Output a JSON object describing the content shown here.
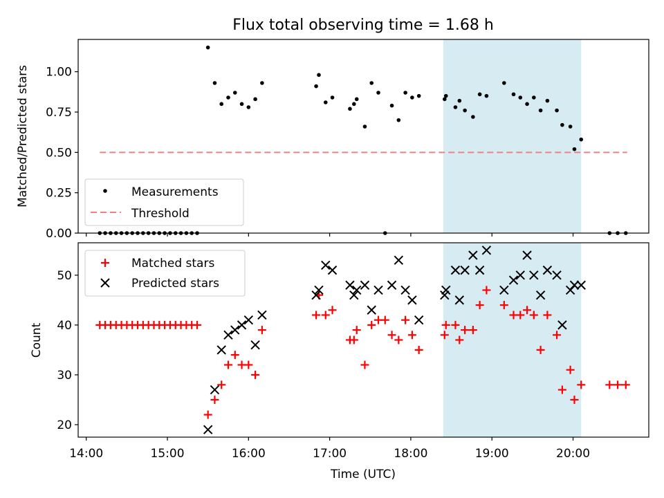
{
  "title": "Flux total observing time = 1.68 h",
  "colors": {
    "measurement": "#000000",
    "threshold": "#f08080",
    "matched": "#ff0000",
    "predicted": "#000000",
    "highlight": "#add8e6"
  },
  "chart_data": [
    {
      "type": "scatter",
      "ylabel": "Matched/Predicted stars",
      "xlim": [
        "13:54",
        "20:56"
      ],
      "ylim": [
        0,
        1.2
      ],
      "yticks": [
        "0.00",
        "0.25",
        "0.50",
        "0.75",
        "1.00"
      ],
      "highlight_span": [
        "18:24",
        "20:06"
      ],
      "legend": {
        "position": "lower-left",
        "entries": [
          "Measurements",
          "Threshold"
        ]
      },
      "threshold": {
        "name": "Threshold",
        "x": [
          "14:10",
          "20:40"
        ],
        "y": 0.5
      },
      "series": [
        {
          "name": "Measurements",
          "marker": "dot",
          "points": [
            [
              "14:10",
              0
            ],
            [
              "14:14",
              0
            ],
            [
              "14:18",
              0
            ],
            [
              "14:22",
              0
            ],
            [
              "14:26",
              0
            ],
            [
              "14:30",
              0
            ],
            [
              "14:34",
              0
            ],
            [
              "14:38",
              0
            ],
            [
              "14:42",
              0
            ],
            [
              "14:46",
              0
            ],
            [
              "14:50",
              0
            ],
            [
              "14:54",
              0
            ],
            [
              "14:58",
              0
            ],
            [
              "15:02",
              0
            ],
            [
              "15:06",
              0
            ],
            [
              "15:10",
              0
            ],
            [
              "15:14",
              0
            ],
            [
              "15:18",
              0
            ],
            [
              "15:22",
              0
            ],
            [
              "15:30",
              1.15
            ],
            [
              "15:35",
              0.93
            ],
            [
              "15:40",
              0.8
            ],
            [
              "15:45",
              0.84
            ],
            [
              "15:50",
              0.87
            ],
            [
              "15:55",
              0.8
            ],
            [
              "16:00",
              0.78
            ],
            [
              "16:05",
              0.83
            ],
            [
              "16:10",
              0.93
            ],
            [
              "16:50",
              0.91
            ],
            [
              "16:52",
              0.98
            ],
            [
              "16:57",
              0.81
            ],
            [
              "17:02",
              0.84
            ],
            [
              "17:15",
              0.77
            ],
            [
              "17:18",
              0.8
            ],
            [
              "17:20",
              0.83
            ],
            [
              "17:26",
              0.66
            ],
            [
              "17:31",
              0.93
            ],
            [
              "17:36",
              0.87
            ],
            [
              "17:41",
              0.0
            ],
            [
              "17:46",
              0.79
            ],
            [
              "17:51",
              0.7
            ],
            [
              "17:56",
              0.87
            ],
            [
              "18:01",
              0.84
            ],
            [
              "18:06",
              0.85
            ],
            [
              "18:25",
              0.83
            ],
            [
              "18:26",
              0.85
            ],
            [
              "18:33",
              0.78
            ],
            [
              "18:36",
              0.82
            ],
            [
              "18:40",
              0.76
            ],
            [
              "18:46",
              0.72
            ],
            [
              "18:51",
              0.86
            ],
            [
              "18:56",
              0.85
            ],
            [
              "19:09",
              0.93
            ],
            [
              "19:16",
              0.86
            ],
            [
              "19:21",
              0.84
            ],
            [
              "19:26",
              0.8
            ],
            [
              "19:31",
              0.84
            ],
            [
              "19:36",
              0.76
            ],
            [
              "19:41",
              0.82
            ],
            [
              "19:48",
              0.76
            ],
            [
              "19:52",
              0.67
            ],
            [
              "19:58",
              0.66
            ],
            [
              "20:01",
              0.52
            ],
            [
              "20:06",
              0.58
            ],
            [
              "20:27",
              0
            ],
            [
              "20:33",
              0
            ],
            [
              "20:39",
              0
            ]
          ]
        }
      ]
    },
    {
      "type": "scatter",
      "ylabel": "Count",
      "xlabel": "Time (UTC)",
      "xlim": [
        "13:54",
        "20:56"
      ],
      "ylim": [
        17.5,
        56.5
      ],
      "yticks": [
        "20",
        "30",
        "40",
        "50"
      ],
      "xticks": [
        "14:00",
        "15:00",
        "16:00",
        "17:00",
        "18:00",
        "19:00",
        "20:00"
      ],
      "highlight_span": [
        "18:24",
        "20:06"
      ],
      "legend": {
        "position": "upper-left",
        "entries": [
          "Matched stars",
          "Predicted stars"
        ]
      },
      "series": [
        {
          "name": "Matched stars",
          "marker": "plus",
          "points": [
            [
              "14:10",
              40
            ],
            [
              "14:14",
              40
            ],
            [
              "14:18",
              40
            ],
            [
              "14:22",
              40
            ],
            [
              "14:26",
              40
            ],
            [
              "14:30",
              40
            ],
            [
              "14:34",
              40
            ],
            [
              "14:38",
              40
            ],
            [
              "14:42",
              40
            ],
            [
              "14:46",
              40
            ],
            [
              "14:50",
              40
            ],
            [
              "14:54",
              40
            ],
            [
              "14:58",
              40
            ],
            [
              "15:02",
              40
            ],
            [
              "15:06",
              40
            ],
            [
              "15:10",
              40
            ],
            [
              "15:14",
              40
            ],
            [
              "15:18",
              40
            ],
            [
              "15:22",
              40
            ],
            [
              "15:30",
              22
            ],
            [
              "15:35",
              25
            ],
            [
              "15:40",
              28
            ],
            [
              "15:45",
              32
            ],
            [
              "15:50",
              34
            ],
            [
              "15:55",
              32
            ],
            [
              "16:00",
              32
            ],
            [
              "16:05",
              30
            ],
            [
              "16:10",
              39
            ],
            [
              "16:50",
              42
            ],
            [
              "16:52",
              46
            ],
            [
              "16:57",
              42
            ],
            [
              "17:02",
              43
            ],
            [
              "17:15",
              37
            ],
            [
              "17:18",
              37
            ],
            [
              "17:20",
              39
            ],
            [
              "17:26",
              32
            ],
            [
              "17:31",
              40
            ],
            [
              "17:36",
              41
            ],
            [
              "17:41",
              41
            ],
            [
              "17:46",
              38
            ],
            [
              "17:51",
              37
            ],
            [
              "17:56",
              41
            ],
            [
              "18:01",
              38
            ],
            [
              "18:06",
              35
            ],
            [
              "18:25",
              38
            ],
            [
              "18:26",
              40
            ],
            [
              "18:33",
              40
            ],
            [
              "18:36",
              37
            ],
            [
              "18:40",
              39
            ],
            [
              "18:46",
              39
            ],
            [
              "18:51",
              44
            ],
            [
              "18:56",
              47
            ],
            [
              "19:09",
              44
            ],
            [
              "19:16",
              42
            ],
            [
              "19:21",
              42
            ],
            [
              "19:26",
              43
            ],
            [
              "19:31",
              42
            ],
            [
              "19:36",
              35
            ],
            [
              "19:41",
              42
            ],
            [
              "19:48",
              38
            ],
            [
              "19:52",
              27
            ],
            [
              "19:58",
              31
            ],
            [
              "20:01",
              25
            ],
            [
              "20:06",
              28
            ],
            [
              "20:27",
              28
            ],
            [
              "20:33",
              28
            ],
            [
              "20:39",
              28
            ]
          ]
        },
        {
          "name": "Predicted stars",
          "marker": "x",
          "points": [
            [
              "15:30",
              19
            ],
            [
              "15:35",
              27
            ],
            [
              "15:40",
              35
            ],
            [
              "15:45",
              38
            ],
            [
              "15:50",
              39
            ],
            [
              "15:55",
              40
            ],
            [
              "16:00",
              41
            ],
            [
              "16:05",
              36
            ],
            [
              "16:10",
              42
            ],
            [
              "16:50",
              46
            ],
            [
              "16:52",
              47
            ],
            [
              "16:57",
              52
            ],
            [
              "17:02",
              51
            ],
            [
              "17:15",
              48
            ],
            [
              "17:18",
              46
            ],
            [
              "17:20",
              47
            ],
            [
              "17:26",
              48
            ],
            [
              "17:31",
              43
            ],
            [
              "17:36",
              47
            ],
            [
              "17:46",
              48
            ],
            [
              "17:51",
              53
            ],
            [
              "17:56",
              47
            ],
            [
              "18:01",
              45
            ],
            [
              "18:06",
              41
            ],
            [
              "18:25",
              46
            ],
            [
              "18:26",
              47
            ],
            [
              "18:33",
              51
            ],
            [
              "18:36",
              45
            ],
            [
              "18:40",
              51
            ],
            [
              "18:46",
              54
            ],
            [
              "18:51",
              51
            ],
            [
              "18:56",
              55
            ],
            [
              "19:09",
              47
            ],
            [
              "19:16",
              49
            ],
            [
              "19:21",
              50
            ],
            [
              "19:26",
              54
            ],
            [
              "19:31",
              50
            ],
            [
              "19:36",
              46
            ],
            [
              "19:41",
              51
            ],
            [
              "19:48",
              50
            ],
            [
              "19:52",
              40
            ],
            [
              "19:58",
              47
            ],
            [
              "20:01",
              48
            ],
            [
              "20:06",
              48
            ]
          ]
        }
      ]
    }
  ]
}
